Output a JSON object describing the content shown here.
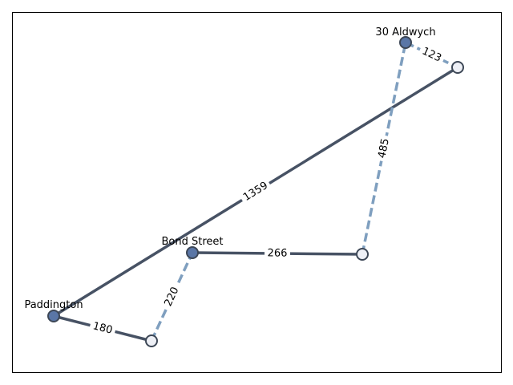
{
  "colors": {
    "solid_edge": "#475264",
    "dashed_edge": "#7f9fbf",
    "station_fill": "#5a76a6",
    "waypoint_fill": "#eef0f6",
    "node_stroke": "#3d4756"
  },
  "nodes": [
    {
      "id": "paddington",
      "label": "Paddington",
      "kind": "station"
    },
    {
      "id": "bond-street",
      "label": "Bond Street",
      "kind": "station"
    },
    {
      "id": "aldwych",
      "label": "30 Aldwych",
      "kind": "station"
    },
    {
      "id": "w1",
      "label": "",
      "kind": "waypoint"
    },
    {
      "id": "w2",
      "label": "",
      "kind": "waypoint"
    },
    {
      "id": "w3",
      "label": "",
      "kind": "waypoint"
    }
  ],
  "edges": [
    {
      "from": "paddington",
      "to": "w1",
      "label": "1359",
      "style": "solid"
    },
    {
      "from": "paddington",
      "to": "w2",
      "label": "180",
      "style": "solid"
    },
    {
      "from": "w2",
      "to": "bond-street",
      "label": "220",
      "style": "dashed"
    },
    {
      "from": "bond-street",
      "to": "w3",
      "label": "266",
      "style": "solid"
    },
    {
      "from": "w3",
      "to": "aldwych",
      "label": "485",
      "style": "dashed"
    },
    {
      "from": "aldwych",
      "to": "w1",
      "label": "123",
      "style": "dashed"
    }
  ]
}
